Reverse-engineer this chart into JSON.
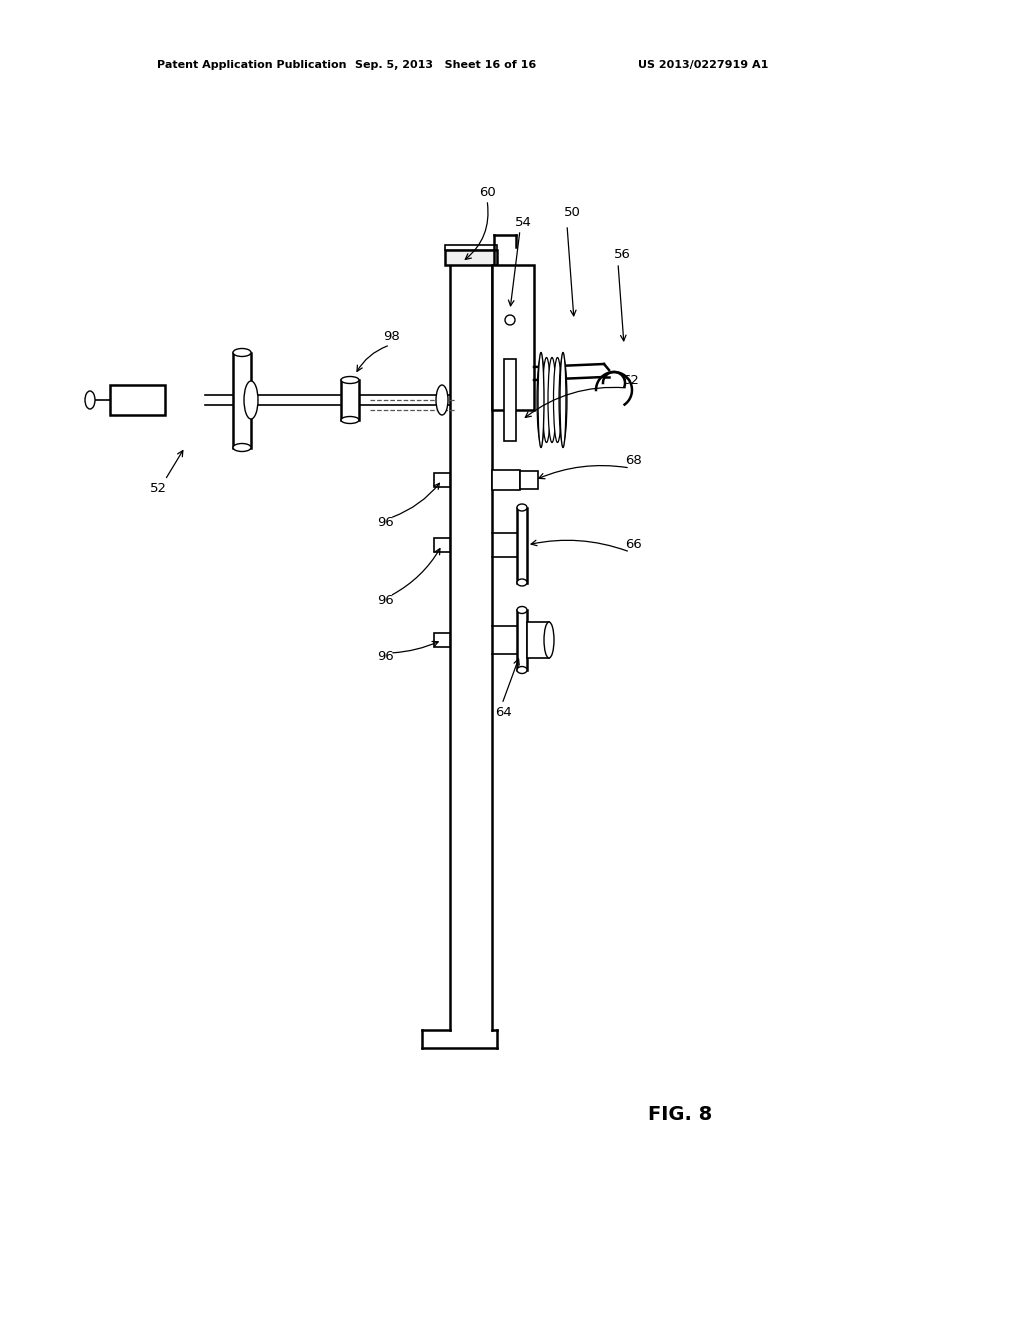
{
  "bg_color": "#ffffff",
  "line_color": "#000000",
  "header_left": "Patent Application Publication",
  "header_mid": "Sep. 5, 2013   Sheet 16 of 16",
  "header_right": "US 2013/0227919 A1",
  "fig_label": "FIG. 8"
}
